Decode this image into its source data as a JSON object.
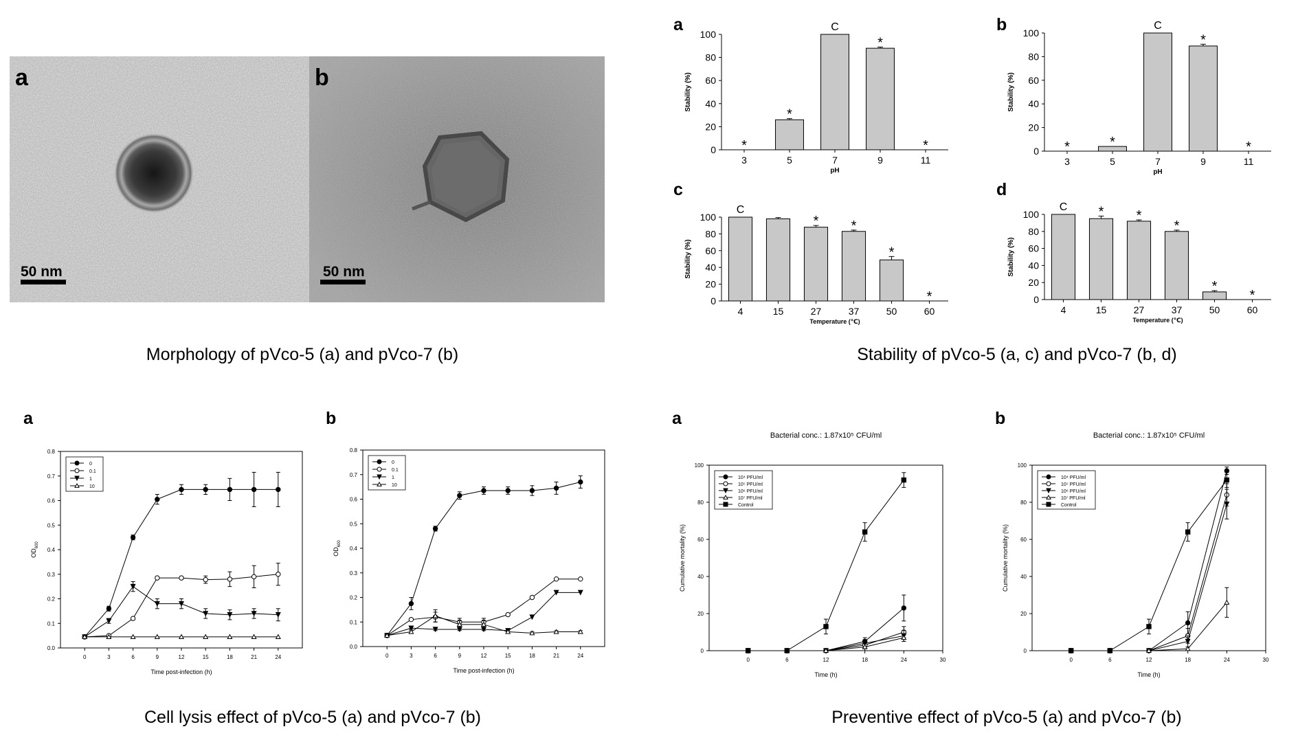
{
  "morphology": {
    "caption": "Morphology of pVco-5 (a) and pVco-7 (b)",
    "panels": [
      {
        "label": "a",
        "scale_label": "50 nm"
      },
      {
        "label": "b",
        "scale_label": "50 nm"
      }
    ]
  },
  "stability": {
    "caption": "Stability of pVco-5 (a, c) and pVco-7 (b, d)"
  },
  "lysis": {
    "caption": "Cell lysis effect of pVco-5 (a) and pVco-7 (b)"
  },
  "preventive": {
    "caption": "Preventive effect of pVco-5 (a) and pVco-7 (b)"
  },
  "colors": {
    "bar_fill": "#c8c8c8",
    "micrograph_a": "#b9b9b9",
    "micrograph_b": "#8f8f8f"
  },
  "chart_data": [
    {
      "id": "stab-a",
      "type": "bar",
      "label": "a",
      "xlabel": "pH",
      "ylabel": "Stability (%)",
      "ylim": [
        0,
        100
      ],
      "yticks": [
        0,
        20,
        40,
        60,
        80,
        100
      ],
      "categories": [
        "3",
        "5",
        "7",
        "9",
        "11"
      ],
      "values": [
        0,
        26,
        100,
        88,
        0
      ],
      "errors": [
        0,
        1,
        0,
        1,
        0
      ],
      "annotations": [
        "*",
        "*",
        "C",
        "*",
        "*"
      ]
    },
    {
      "id": "stab-b",
      "type": "bar",
      "label": "b",
      "xlabel": "pH",
      "ylabel": "Stability (%)",
      "ylim": [
        0,
        100
      ],
      "yticks": [
        0,
        20,
        40,
        60,
        80,
        100
      ],
      "categories": [
        "3",
        "5",
        "7",
        "9",
        "11"
      ],
      "values": [
        0,
        4,
        100,
        89,
        0
      ],
      "errors": [
        0,
        0,
        0,
        1.5,
        0
      ],
      "annotations": [
        "*",
        "*",
        "C",
        "*",
        "*"
      ]
    },
    {
      "id": "stab-c",
      "type": "bar",
      "label": "c",
      "xlabel": "Temperature (℃)",
      "ylabel": "Stability (%)",
      "ylim": [
        0,
        100
      ],
      "yticks": [
        0,
        20,
        40,
        60,
        80,
        100
      ],
      "categories": [
        "4",
        "15",
        "27",
        "37",
        "50",
        "60"
      ],
      "values": [
        100,
        98,
        88,
        83,
        49,
        0
      ],
      "errors": [
        0,
        1.5,
        2,
        1.5,
        4,
        0
      ],
      "annotations": [
        "C",
        "",
        "*",
        "*",
        "*",
        "*"
      ]
    },
    {
      "id": "stab-d",
      "type": "bar",
      "label": "d",
      "xlabel": "Temperature (℃)",
      "ylabel": "Stability (%)",
      "ylim": [
        0,
        100
      ],
      "yticks": [
        0,
        20,
        40,
        60,
        80,
        100
      ],
      "categories": [
        "4",
        "15",
        "27",
        "37",
        "50",
        "60"
      ],
      "values": [
        100,
        95,
        92,
        80,
        9,
        0
      ],
      "errors": [
        0,
        3,
        1.5,
        1.5,
        1.5,
        0
      ],
      "annotations": [
        "C",
        "*",
        "*",
        "*",
        "*",
        "*"
      ]
    },
    {
      "id": "lysis-a",
      "type": "line",
      "label": "a",
      "xlabel": "Time post-infection (h)",
      "ylabel": "OD600",
      "xlim": [
        -3,
        27
      ],
      "ylim": [
        0,
        0.8
      ],
      "xticks": [
        0,
        3,
        6,
        9,
        12,
        15,
        18,
        21,
        24
      ],
      "yticks": [
        0.0,
        0.1,
        0.2,
        0.3,
        0.4,
        0.5,
        0.6,
        0.7,
        0.8
      ],
      "legend_position": "top-left",
      "x": [
        0,
        3,
        6,
        9,
        12,
        15,
        18,
        21,
        24
      ],
      "series": [
        {
          "name": "0",
          "marker": "circle-filled",
          "values": [
            0.045,
            0.16,
            0.45,
            0.605,
            0.645,
            0.645,
            0.645,
            0.645,
            0.645
          ],
          "errors": [
            0,
            0.01,
            0.01,
            0.02,
            0.02,
            0.02,
            0.045,
            0.07,
            0.07
          ]
        },
        {
          "name": "0.1",
          "marker": "circle-open",
          "values": [
            0.045,
            0.05,
            0.12,
            0.285,
            0.285,
            0.278,
            0.28,
            0.29,
            0.3
          ],
          "errors": [
            0,
            0,
            0,
            0,
            0.005,
            0.015,
            0.03,
            0.045,
            0.045
          ]
        },
        {
          "name": "1",
          "marker": "triangle-down-filled",
          "values": [
            0.045,
            0.11,
            0.25,
            0.18,
            0.18,
            0.14,
            0.135,
            0.14,
            0.135
          ],
          "errors": [
            0,
            0.01,
            0.02,
            0.02,
            0.02,
            0.02,
            0.02,
            0.02,
            0.025
          ]
        },
        {
          "name": "10",
          "marker": "triangle-up-open",
          "values": [
            0.045,
            0.045,
            0.045,
            0.045,
            0.045,
            0.045,
            0.045,
            0.045,
            0.045
          ],
          "errors": [
            0,
            0,
            0,
            0,
            0,
            0,
            0,
            0,
            0
          ]
        }
      ]
    },
    {
      "id": "lysis-b",
      "type": "line",
      "label": "b",
      "xlabel": "Time post-infection (h)",
      "ylabel": "OD600",
      "xlim": [
        -3,
        27
      ],
      "ylim": [
        0,
        0.8
      ],
      "xticks": [
        0,
        3,
        6,
        9,
        12,
        15,
        18,
        21,
        24
      ],
      "yticks": [
        0.0,
        0.1,
        0.2,
        0.3,
        0.4,
        0.5,
        0.6,
        0.7,
        0.8
      ],
      "legend_position": "top-left",
      "x": [
        0,
        3,
        6,
        9,
        12,
        15,
        18,
        21,
        24
      ],
      "series": [
        {
          "name": "0",
          "marker": "circle-filled",
          "values": [
            0.045,
            0.175,
            0.48,
            0.615,
            0.635,
            0.635,
            0.635,
            0.645,
            0.67
          ],
          "errors": [
            0,
            0.025,
            0.01,
            0.015,
            0.015,
            0.015,
            0.02,
            0.025,
            0.025
          ]
        },
        {
          "name": "0.1",
          "marker": "circle-open",
          "values": [
            0.045,
            0.11,
            0.12,
            0.1,
            0.1,
            0.13,
            0.2,
            0.275,
            0.275
          ],
          "errors": [
            0,
            0.005,
            0.02,
            0.015,
            0.015,
            0,
            0,
            0,
            0
          ]
        },
        {
          "name": "1",
          "marker": "triangle-down-filled",
          "values": [
            0.045,
            0.075,
            0.07,
            0.07,
            0.07,
            0.065,
            0.12,
            0.22,
            0.22
          ],
          "errors": [
            0,
            0.005,
            0.005,
            0.005,
            0.005,
            0.005,
            0,
            0,
            0
          ]
        },
        {
          "name": "10",
          "marker": "triangle-up-open",
          "values": [
            0.045,
            0.06,
            0.125,
            0.09,
            0.09,
            0.06,
            0.055,
            0.06,
            0.06
          ],
          "errors": [
            0,
            0.005,
            0.025,
            0.015,
            0.015,
            0.005,
            0.005,
            0.005,
            0.005
          ]
        }
      ]
    },
    {
      "id": "prev-a",
      "type": "line",
      "label": "a",
      "title": "Bacterial conc.: 1.87x10⁵ CFU/ml",
      "xlabel": "Time (h)",
      "ylabel": "Cumulative mortality (%)",
      "xlim": [
        -6,
        30
      ],
      "ylim": [
        0,
        100
      ],
      "xticks": [
        0,
        6,
        12,
        18,
        24,
        30
      ],
      "yticks": [
        0,
        20,
        40,
        60,
        80,
        100
      ],
      "legend_position": "top-left",
      "x": [
        0,
        6,
        12,
        18,
        24
      ],
      "series": [
        {
          "name": "10⁴ PFU/ml",
          "marker": "circle-filled",
          "values": [
            0,
            0,
            0,
            5,
            23
          ],
          "errors": [
            0,
            0,
            0,
            2,
            7
          ]
        },
        {
          "name": "10⁵ PFU/ml",
          "marker": "circle-open",
          "values": [
            0,
            0,
            0,
            3,
            10
          ],
          "errors": [
            0,
            0,
            0,
            2,
            3
          ]
        },
        {
          "name": "10⁶ PFU/ml",
          "marker": "triangle-down-filled",
          "values": [
            0,
            0,
            0,
            4,
            8
          ],
          "errors": [
            0,
            0,
            0,
            2,
            3
          ]
        },
        {
          "name": "10⁷ PFU/ml",
          "marker": "triangle-up-open",
          "values": [
            0,
            0,
            0,
            2,
            7
          ],
          "errors": [
            0,
            0,
            0,
            2,
            2
          ]
        },
        {
          "name": "Control",
          "marker": "square-filled",
          "values": [
            0,
            0,
            13,
            64,
            92
          ],
          "errors": [
            0,
            0,
            4,
            5,
            4
          ]
        }
      ]
    },
    {
      "id": "prev-b",
      "type": "line",
      "label": "b",
      "title": "Bacterial conc.: 1.87x10⁵ CFU/ml",
      "xlabel": "Time (h)",
      "ylabel": "Cumulative mortality (%)",
      "xlim": [
        -6,
        30
      ],
      "ylim": [
        0,
        100
      ],
      "xticks": [
        0,
        6,
        12,
        18,
        24,
        30
      ],
      "yticks": [
        0,
        20,
        40,
        60,
        80,
        100
      ],
      "legend_position": "top-left",
      "x": [
        0,
        6,
        12,
        18,
        24
      ],
      "series": [
        {
          "name": "10⁴ PFU/ml",
          "marker": "circle-filled",
          "values": [
            0,
            0,
            0,
            15,
            97
          ],
          "errors": [
            0,
            0,
            0,
            6,
            2
          ]
        },
        {
          "name": "10⁵ PFU/ml",
          "marker": "circle-open",
          "values": [
            0,
            0,
            0,
            8,
            84
          ],
          "errors": [
            0,
            0,
            0,
            4,
            6
          ]
        },
        {
          "name": "10⁶ PFU/ml",
          "marker": "triangle-down-filled",
          "values": [
            0,
            0,
            0,
            5,
            79
          ],
          "errors": [
            0,
            0,
            0,
            3,
            8
          ]
        },
        {
          "name": "10⁷ PFU/ml",
          "marker": "triangle-up-open",
          "values": [
            0,
            0,
            0,
            1,
            26
          ],
          "errors": [
            0,
            0,
            0,
            1,
            8
          ]
        },
        {
          "name": "Control",
          "marker": "square-filled",
          "values": [
            0,
            0,
            13,
            64,
            92
          ],
          "errors": [
            0,
            0,
            4,
            5,
            4
          ]
        }
      ]
    }
  ]
}
